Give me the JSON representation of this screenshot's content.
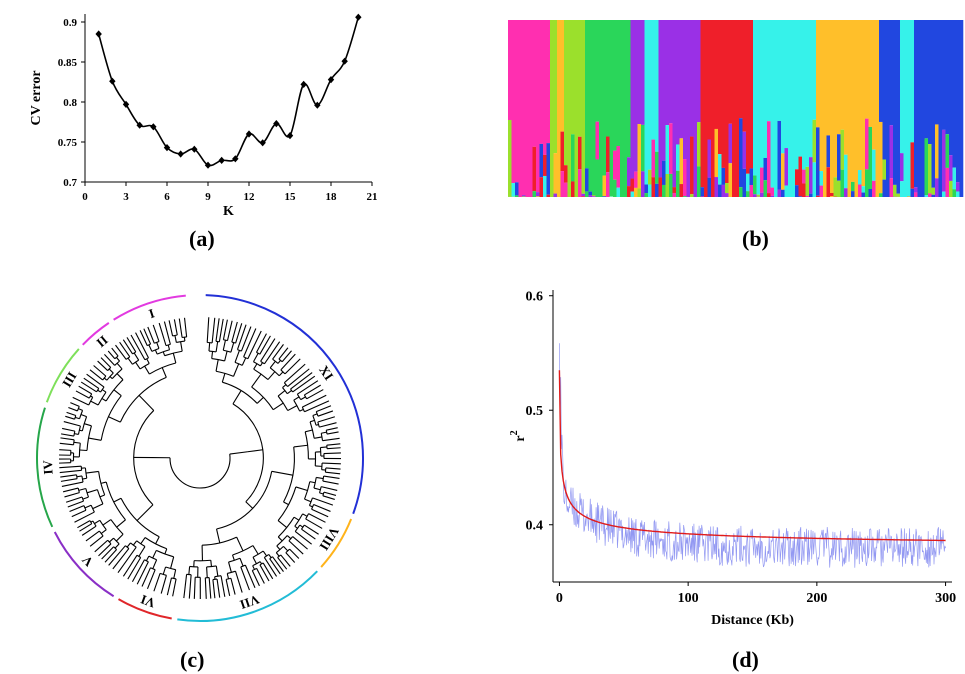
{
  "chart_data": [
    {
      "type": "line",
      "panel_label": "(a)",
      "xlabel": "K",
      "ylabel": "CV error",
      "xlim": [
        0,
        21
      ],
      "ylim": [
        0.7,
        0.91
      ],
      "xticks": [
        0,
        3,
        6,
        9,
        12,
        15,
        18,
        21
      ],
      "yticks": [
        0.7,
        0.75,
        0.8,
        0.85,
        0.9
      ],
      "ytick_labels": [
        "0.7",
        "0.75",
        "0.8",
        "0.85",
        "0.9"
      ],
      "x": [
        1,
        2,
        3,
        4,
        5,
        6,
        7,
        8,
        9,
        10,
        11,
        12,
        13,
        14,
        15,
        16,
        17,
        18,
        19,
        20
      ],
      "values": [
        0.885,
        0.826,
        0.797,
        0.771,
        0.769,
        0.743,
        0.735,
        0.741,
        0.721,
        0.727,
        0.729,
        0.76,
        0.749,
        0.773,
        0.758,
        0.822,
        0.796,
        0.828,
        0.851,
        0.906
      ],
      "color": "#000000"
    },
    {
      "type": "bar",
      "panel_label": "(b)",
      "stacked": true,
      "n_samples": 130,
      "colors": [
        "#ff2fb0",
        "#ffbf2a",
        "#9be02c",
        "#2ad65a",
        "#9a30e6",
        "#ef1f2a",
        "#36f2ea",
        "#2147e0"
      ],
      "group_sequence": [
        [
          0,
          12
        ],
        [
          2,
          2
        ],
        [
          1,
          2
        ],
        [
          2,
          6
        ],
        [
          3,
          13
        ],
        [
          4,
          4
        ],
        [
          6,
          4
        ],
        [
          4,
          12
        ],
        [
          5,
          15
        ],
        [
          6,
          18
        ],
        [
          1,
          18
        ],
        [
          7,
          6
        ],
        [
          6,
          4
        ],
        [
          7,
          14
        ]
      ],
      "secondary_fraction": 0.22
    },
    {
      "type": "tree",
      "panel_label": "(c)",
      "clusters": [
        {
          "label": "I",
          "color": "#e23ae0"
        },
        {
          "label": "II",
          "color": "#e23ae0"
        },
        {
          "label": "III",
          "color": "#7ee05a"
        },
        {
          "label": "IV",
          "color": "#26a64a"
        },
        {
          "label": "V",
          "color": "#8a2fc6"
        },
        {
          "label": "VI",
          "color": "#e0262a"
        },
        {
          "label": "VII",
          "color": "#22bcd6"
        },
        {
          "label": "VIII",
          "color": "#ffb31a"
        },
        {
          "label": "XI",
          "color": "#2230d6"
        }
      ]
    },
    {
      "type": "line",
      "panel_label": "(d)",
      "xlabel": "Distance (Kb)",
      "ylabel": "r",
      "ylabel_superscript": "2",
      "xlim": [
        -5,
        305
      ],
      "ylim": [
        0.35,
        0.605
      ],
      "xticks": [
        0,
        100,
        200,
        300
      ],
      "yticks": [
        0.4,
        0.5,
        0.6
      ],
      "ytick_labels": [
        "0.4",
        "0.5",
        "0.6"
      ],
      "series": [
        {
          "color": "#7f86f0",
          "kind": "raw",
          "peak": 0.59,
          "baseline_end": 0.38,
          "noise": 0.018
        },
        {
          "color": "#e01b1b",
          "kind": "fit",
          "start": 0.535,
          "end": 0.38
        }
      ]
    }
  ]
}
